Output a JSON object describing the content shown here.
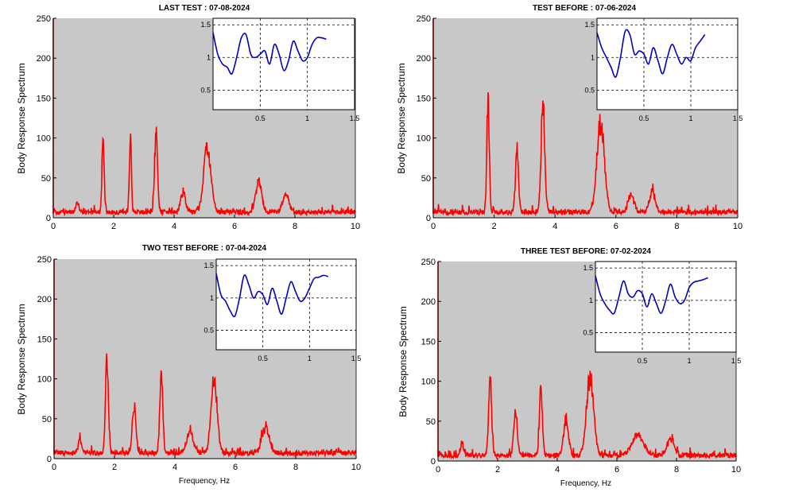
{
  "colors": {
    "background": "#ffffff",
    "plot_bg": "#c8c8c8",
    "main_line": "#ff0000",
    "inset_line": "#0000c0",
    "grid": "#000000"
  },
  "chart_data": [
    {
      "type": "line",
      "title": "LAST TEST : 07-08-2024",
      "xlabel": "",
      "ylabel": "Body Response Spectrum",
      "xlim": [
        0,
        10
      ],
      "ylim": [
        0,
        250
      ],
      "x_ticks": [
        "0",
        "2",
        "4",
        "6",
        "8",
        "10"
      ],
      "y_ticks": [
        "0",
        "50",
        "100",
        "150",
        "200",
        "250"
      ],
      "grid": false,
      "peaks": [
        {
          "x": 0.8,
          "y": 12,
          "w": 0.05
        },
        {
          "x": 1.65,
          "y": 100,
          "w": 0.035
        },
        {
          "x": 2.55,
          "y": 92,
          "w": 0.035
        },
        {
          "x": 3.4,
          "y": 95,
          "w": 0.05
        },
        {
          "x": 4.3,
          "y": 25,
          "w": 0.08
        },
        {
          "x": 5.1,
          "y": 80,
          "w": 0.12
        },
        {
          "x": 6.8,
          "y": 38,
          "w": 0.1
        },
        {
          "x": 7.7,
          "y": 22,
          "w": 0.1
        }
      ],
      "inset": {
        "xlim": [
          0,
          1.5
        ],
        "ylim": [
          0.2,
          1.6
        ],
        "x_ticks": [
          "0.5",
          "1",
          "1.5"
        ],
        "y_ticks": [
          "0.5",
          "1",
          "1.5"
        ],
        "grid": true,
        "x": [
          0.0,
          0.05,
          0.1,
          0.15,
          0.2,
          0.25,
          0.3,
          0.35,
          0.4,
          0.45,
          0.5,
          0.55,
          0.6,
          0.65,
          0.7,
          0.75,
          0.8,
          0.85,
          0.9,
          0.95,
          1.0,
          1.05,
          1.1,
          1.15,
          1.2
        ],
        "y": [
          1.38,
          1.05,
          0.9,
          0.85,
          0.75,
          1.0,
          1.3,
          1.35,
          1.05,
          1.0,
          1.05,
          1.1,
          0.9,
          1.2,
          1.05,
          0.8,
          0.95,
          1.25,
          1.1,
          0.95,
          1.0,
          1.2,
          1.3,
          1.3,
          1.28
        ]
      }
    },
    {
      "type": "line",
      "title": "TEST BEFORE : 07-06-2024",
      "xlabel": "",
      "ylabel": "Body Response Spectrum",
      "xlim": [
        0,
        10
      ],
      "ylim": [
        0,
        250
      ],
      "x_ticks": [
        "0",
        "2",
        "4",
        "6",
        "8",
        "10"
      ],
      "y_ticks": [
        "0",
        "50",
        "100",
        "150",
        "200",
        "250"
      ],
      "grid": false,
      "peaks": [
        {
          "x": 1.8,
          "y": 140,
          "w": 0.04
        },
        {
          "x": 2.75,
          "y": 82,
          "w": 0.05
        },
        {
          "x": 3.6,
          "y": 132,
          "w": 0.06
        },
        {
          "x": 5.5,
          "y": 112,
          "w": 0.12
        },
        {
          "x": 6.5,
          "y": 22,
          "w": 0.1
        },
        {
          "x": 7.2,
          "y": 25,
          "w": 0.1
        }
      ],
      "inset": {
        "xlim": [
          0,
          1.5
        ],
        "ylim": [
          0.2,
          1.6
        ],
        "x_ticks": [
          "0.5",
          "1",
          "1.5"
        ],
        "y_ticks": [
          "0.5",
          "1",
          "1.5"
        ],
        "grid": true,
        "x": [
          0.0,
          0.05,
          0.1,
          0.15,
          0.2,
          0.25,
          0.3,
          0.35,
          0.4,
          0.45,
          0.5,
          0.55,
          0.6,
          0.65,
          0.7,
          0.75,
          0.8,
          0.85,
          0.9,
          0.95,
          1.0,
          1.05,
          1.1,
          1.15
        ],
        "y": [
          1.38,
          1.15,
          1.0,
          0.85,
          0.7,
          1.0,
          1.4,
          1.35,
          1.05,
          1.1,
          1.05,
          0.9,
          1.15,
          0.95,
          0.75,
          1.0,
          1.2,
          1.05,
          0.9,
          1.0,
          0.95,
          1.15,
          1.25,
          1.35
        ]
      }
    },
    {
      "type": "line",
      "title": "TWO TEST BEFORE : 07-04-2024",
      "xlabel": "Frequency, Hz",
      "ylabel": "Body Response Spectrum",
      "xlim": [
        0,
        10
      ],
      "ylim": [
        0,
        250
      ],
      "x_ticks": [
        "0",
        "2",
        "4",
        "6",
        "8",
        "10"
      ],
      "y_ticks": [
        "0",
        "50",
        "100",
        "150",
        "200",
        "250"
      ],
      "grid": false,
      "peaks": [
        {
          "x": 0.85,
          "y": 18,
          "w": 0.05
        },
        {
          "x": 1.75,
          "y": 110,
          "w": 0.05
        },
        {
          "x": 2.65,
          "y": 57,
          "w": 0.06
        },
        {
          "x": 3.55,
          "y": 94,
          "w": 0.05
        },
        {
          "x": 4.5,
          "y": 25,
          "w": 0.12
        },
        {
          "x": 5.3,
          "y": 92,
          "w": 0.1
        },
        {
          "x": 7.0,
          "y": 30,
          "w": 0.12
        }
      ],
      "inset": {
        "xlim": [
          0,
          1.5
        ],
        "ylim": [
          0.2,
          1.6
        ],
        "x_ticks": [
          "0.5",
          "1",
          "1.5"
        ],
        "y_ticks": [
          "0.5",
          "1",
          "1.5"
        ],
        "grid": true,
        "x": [
          0.0,
          0.05,
          0.1,
          0.15,
          0.2,
          0.25,
          0.3,
          0.35,
          0.4,
          0.45,
          0.5,
          0.55,
          0.6,
          0.65,
          0.7,
          0.75,
          0.8,
          0.85,
          0.9,
          0.95,
          1.0,
          1.05,
          1.1,
          1.15,
          1.2
        ],
        "y": [
          1.38,
          1.05,
          0.95,
          0.8,
          0.72,
          1.0,
          1.35,
          1.2,
          1.0,
          1.1,
          1.05,
          0.9,
          1.15,
          0.95,
          0.75,
          1.0,
          1.25,
          1.1,
          0.95,
          1.0,
          1.15,
          1.3,
          1.32,
          1.35,
          1.33
        ]
      }
    },
    {
      "type": "line",
      "title": "THREE TEST BEFORE:   07-02-2024",
      "xlabel": "Frequency, Hz",
      "ylabel": "Body Response Spectrum",
      "xlim": [
        0,
        10
      ],
      "ylim": [
        0,
        250
      ],
      "x_ticks": [
        "0",
        "2",
        "4",
        "6",
        "8",
        "10"
      ],
      "y_ticks": [
        "0",
        "50",
        "100",
        "150",
        "200",
        "250"
      ],
      "grid": false,
      "peaks": [
        {
          "x": 0.8,
          "y": 15,
          "w": 0.05
        },
        {
          "x": 1.75,
          "y": 98,
          "w": 0.05
        },
        {
          "x": 2.6,
          "y": 52,
          "w": 0.06
        },
        {
          "x": 3.45,
          "y": 80,
          "w": 0.05
        },
        {
          "x": 4.3,
          "y": 45,
          "w": 0.08
        },
        {
          "x": 5.1,
          "y": 97,
          "w": 0.12
        },
        {
          "x": 6.7,
          "y": 25,
          "w": 0.2
        },
        {
          "x": 7.8,
          "y": 20,
          "w": 0.12
        }
      ],
      "inset": {
        "xlim": [
          0,
          1.5
        ],
        "ylim": [
          0.2,
          1.6
        ],
        "x_ticks": [
          "0.5",
          "1",
          "1.5"
        ],
        "y_ticks": [
          "0.5",
          "1",
          "1.5"
        ],
        "grid": true,
        "x": [
          0.0,
          0.05,
          0.1,
          0.15,
          0.2,
          0.25,
          0.3,
          0.35,
          0.4,
          0.45,
          0.5,
          0.55,
          0.6,
          0.65,
          0.7,
          0.75,
          0.8,
          0.85,
          0.9,
          0.95,
          1.0,
          1.05,
          1.1,
          1.15,
          1.2
        ],
        "y": [
          1.38,
          1.1,
          0.95,
          0.85,
          0.8,
          1.05,
          1.3,
          1.1,
          1.05,
          1.15,
          1.1,
          0.9,
          1.1,
          0.95,
          0.8,
          1.0,
          1.25,
          1.05,
          0.95,
          1.0,
          1.2,
          1.28,
          1.3,
          1.32,
          1.35
        ]
      }
    }
  ]
}
